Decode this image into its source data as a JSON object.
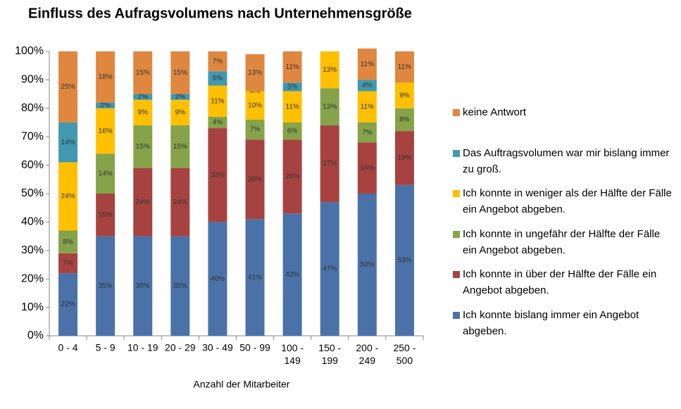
{
  "chart_data": {
    "type": "stacked_bar",
    "title": "Einfluss des Aufragsvolumens nach Unternehmensgröße",
    "x_label": "Anzahl der Mitarbeiter",
    "categories": [
      "0 - 4",
      "5 - 9",
      "10 - 19",
      "20 - 29",
      "30 - 49",
      "50 - 99",
      "100 - 149",
      "150 - 199",
      "200 - 249",
      "250 - 500"
    ],
    "ylim": [
      0,
      100
    ],
    "yticks": [
      {
        "value": 0,
        "label": "0%"
      },
      {
        "value": 10,
        "label": "10%"
      },
      {
        "value": 20,
        "label": "20%"
      },
      {
        "value": 30,
        "label": "30%"
      },
      {
        "value": 40,
        "label": "40%"
      },
      {
        "value": 50,
        "label": "50%"
      },
      {
        "value": 60,
        "label": "60%"
      },
      {
        "value": 70,
        "label": "70%"
      },
      {
        "value": 80,
        "label": "80%"
      },
      {
        "value": 90,
        "label": "90%"
      },
      {
        "value": 100,
        "label": "100%"
      }
    ],
    "grid": false,
    "legend": "right",
    "series": [
      {
        "name": "Ich konnte bislang immer ein Angebot abgeben.",
        "color": "#4a72a8",
        "values": [
          22,
          35,
          35,
          35,
          40,
          41,
          43,
          47,
          50,
          53
        ],
        "value_labels": [
          "22%",
          "35%",
          "35%",
          "35%",
          "40%",
          "41%",
          "43%",
          "47%",
          "50%",
          "53%"
        ]
      },
      {
        "name": "Ich konnte in über der Hälfte der Fälle ein Angebot abgeben.",
        "color": "#a64340",
        "values": [
          7,
          15,
          24,
          24,
          33,
          28,
          26,
          27,
          18,
          19
        ],
        "value_labels": [
          "7%",
          "15%",
          "24%",
          "24%",
          "33%",
          "28%",
          "26%",
          "27%",
          "18%",
          "19%"
        ]
      },
      {
        "name": "Ich konnte in ungefähr der Hälfte der Fälle ein Angebot abgeben.",
        "color": "#86a34a",
        "values": [
          8,
          14,
          15,
          15,
          4,
          7,
          6,
          13,
          7,
          8
        ],
        "value_labels": [
          "8%",
          "14%",
          "15%",
          "15%",
          "4%",
          "7%",
          "6%",
          "13%",
          "7%",
          "8%"
        ]
      },
      {
        "name": "Ich konnte in weniger als der Hälfte der Fälle ein Angebot abgeben.",
        "color": "#ffc000",
        "values": [
          24,
          16,
          9,
          9,
          11,
          10,
          11,
          13,
          11,
          9
        ],
        "value_labels": [
          "24%",
          "16%",
          "9%",
          "9%",
          "11%",
          "10%",
          "11%",
          "13%",
          "11%",
          "9%"
        ]
      },
      {
        "name": "Das Auftragsvolumen war mir bislang immer zu groß.",
        "color": "#4198af",
        "values": [
          14,
          2,
          2,
          2,
          5,
          0,
          3,
          null,
          4,
          null
        ],
        "value_labels": [
          "14%",
          "2%",
          "2%",
          "2%",
          "5%",
          "0%",
          "3%",
          null,
          "4%",
          null
        ]
      },
      {
        "name": "keine Antwort",
        "color": "#e0873f",
        "values": [
          25,
          18,
          15,
          15,
          7,
          13,
          11,
          null,
          11,
          11
        ],
        "value_labels": [
          "25%",
          "18%",
          "15%",
          "15%",
          "7%",
          "13%",
          "11%",
          null,
          "11%",
          "11%"
        ]
      }
    ]
  }
}
